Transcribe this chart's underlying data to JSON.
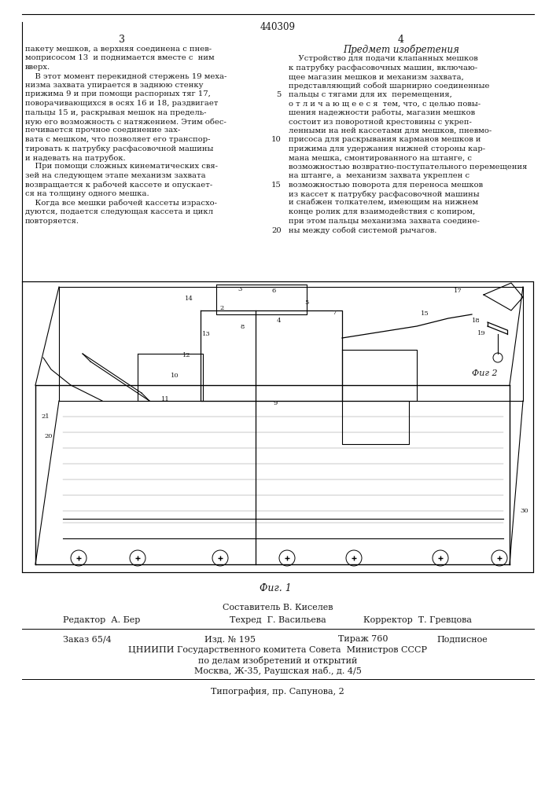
{
  "patent_number": "440309",
  "page_left": "3",
  "page_right": "4",
  "col_right_header": "Предмет изобретения",
  "left_col_lines": [
    "пакету мешков, а верхняя соединена с пнев-",
    "моприсосом 13  и поднимается вместе с  ним",
    "вверх.",
    "    В этот момент перекидной стержень 19 меха-",
    "низма захвата упирается в заднюю стенку",
    "прижима 9 и при помощи распорных тяг 17,",
    "поворачивающихся в осях 16 и 18, раздвигает",
    "пальцы 15 и, раскрывая мешок на предель-",
    "ную его возможность с натяжением. Этим обес-",
    "печивается прочное соединение зах-",
    "вата с мешком, что позволяет его транспор-",
    "тировать к патрубку расфасовочной машины",
    "и надевать на патрубок.",
    "    При помощи сложных кинематических свя-",
    "зей на следующем этапе механизм захвата",
    "возвращается к рабочей кассете и опускает-",
    "ся на толщину одного мешка.",
    "    Когда все мешки рабочей кассеты израсхо-",
    "дуются, подается следующая кассета и цикл",
    "повторяется."
  ],
  "right_col_lines": [
    "    Устройство для подачи клапанных мешков",
    "к патрубку расфасовочных машин, включаю-",
    "щее магазин мешков и механизм захвата,",
    "представляющий собой шарнирно соединенные",
    "пальцы с тягами для их  перемещения,",
    "о т л и ч а ю щ е е с я  тем, что, с целью повы-",
    "шения надежности работы, магазин мешков",
    "состоит из поворотной крестовины с укреп-",
    "ленными на ней кассетами для мешков, пневмо-",
    "присоса для раскрывания карманов мешков и",
    "прижима для удержания нижней стороны кар-",
    "мана мешка, смонтированного на штанге, с",
    "возможностью возвратно-поступательного перемещения",
    "на штанге, а  механизм захвата укреплен с",
    "возможностью поворота для переноса мешков",
    "из кассет к патрубку расфасовочной машины",
    "и снабжен толкателем, имеющим на нижнем",
    "конце ролик для взаимодействия с копиром,",
    "при этом пальцы механизма захвата соедине-",
    "ны между собой системой рычагов."
  ],
  "right_line_numbers": {
    "4": "5",
    "9": "10",
    "14": "15",
    "19": "20"
  },
  "fig1_caption": "Фиг. 1",
  "fig2_label": "Фиг 2",
  "sestavitel": "Составитель В. Киселев",
  "redaktor": "Редактор  А. Бер",
  "tekhred": "Техред  Г. Васильева",
  "korrektor": "Корректор  Т. Гревцова",
  "zakaz": "Заказ 65/4",
  "izd": "Изд. № 195",
  "tirazh": "Тираж 760",
  "podpisnoe": "Подписное",
  "tsniip": "ЦНИИПИ Государственного комитета Совета  Министров СССР",
  "po_delam": "по делам изобретений и открытий",
  "moskva": "Москва, Ж-35, Раушская наб., д. 4/5",
  "tipografia": "Типография, пр. Сапунова, 2",
  "bg_color": "#ffffff",
  "text_color": "#1a1a1a",
  "lc": "#000000"
}
